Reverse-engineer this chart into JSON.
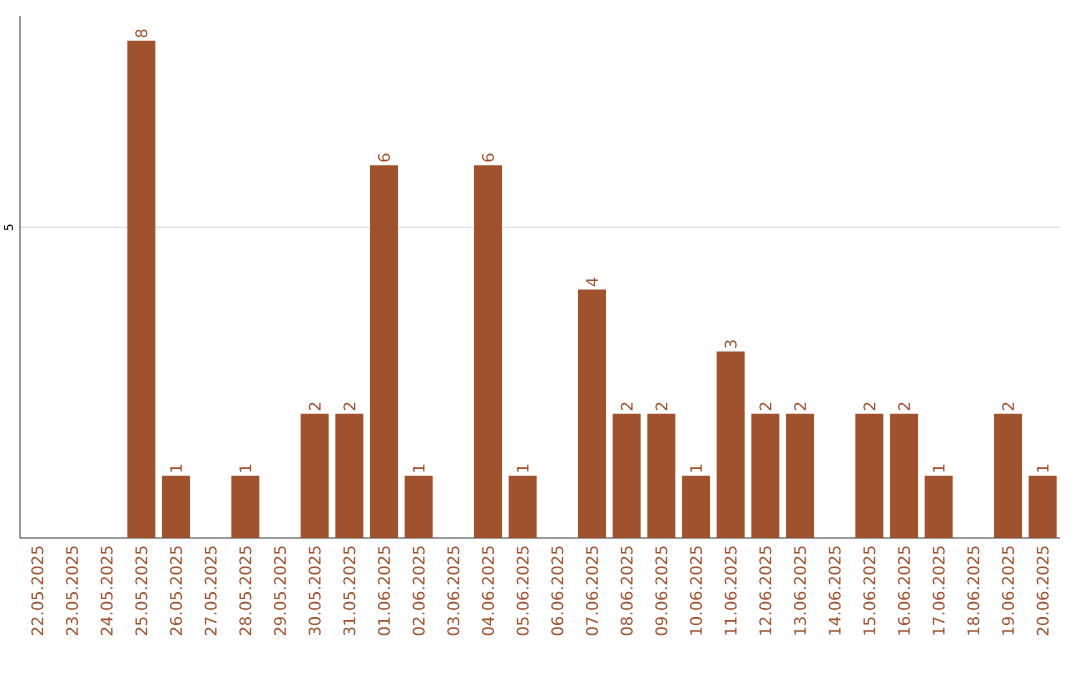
{
  "chart_data": {
    "type": "bar",
    "categories": [
      "22.05.2025",
      "23.05.2025",
      "24.05.2025",
      "25.05.2025",
      "26.05.2025",
      "27.05.2025",
      "28.05.2025",
      "29.05.2025",
      "30.05.2025",
      "31.05.2025",
      "01.06.2025",
      "02.06.2025",
      "03.06.2025",
      "04.06.2025",
      "05.06.2025",
      "06.06.2025",
      "07.06.2025",
      "08.06.2025",
      "09.06.2025",
      "10.06.2025",
      "11.06.2025",
      "12.06.2025",
      "13.06.2025",
      "14.06.2025",
      "15.06.2025",
      "16.06.2025",
      "17.06.2025",
      "18.06.2025",
      "19.06.2025",
      "20.06.2025"
    ],
    "values": [
      0,
      0,
      0,
      8,
      1,
      0,
      1,
      0,
      2,
      2,
      6,
      1,
      0,
      6,
      1,
      0,
      4,
      2,
      2,
      1,
      3,
      2,
      2,
      0,
      2,
      2,
      1,
      0,
      2,
      1
    ],
    "value_labels": [
      null,
      null,
      null,
      "8",
      "1",
      null,
      "1",
      null,
      "2",
      "2",
      "6",
      "1",
      null,
      "6",
      "1",
      null,
      "4",
      "2",
      "2",
      "1",
      "3",
      "2",
      "2",
      null,
      "2",
      "2",
      "1",
      null,
      "2",
      "1"
    ],
    "color": "#a0522d",
    "ylim": [
      0,
      8.4
    ],
    "yticks": [
      5
    ],
    "grid": "y"
  }
}
